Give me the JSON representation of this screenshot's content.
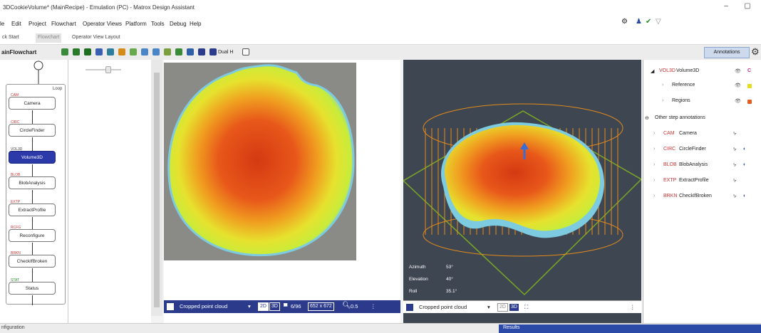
{
  "titlebar": {
    "title": "3DCookieVolume* (MainRecipe) - Emulation (PC) - Matrox Design Assistant",
    "minimize": "–",
    "restore": "▢"
  },
  "menu": [
    "le",
    "Edit",
    "Project",
    "Flowchart",
    "Operator Views",
    "Platform",
    "Tools",
    "Debug",
    "Help"
  ],
  "tabs": [
    "ck Start",
    "Flowchart",
    "Operator View Layout"
  ],
  "toolbar": {
    "flowchart_name": "ainFlowchart",
    "dual_label": "Dual H",
    "annotations_label": "Annotations"
  },
  "flowchart": {
    "loop_label": "Loop",
    "nodes": [
      {
        "tag": "CAM",
        "label": "Camera"
      },
      {
        "tag": "CIRC",
        "label": "CircleFinder"
      },
      {
        "tag": "VOL3D",
        "label": "Volume3D"
      },
      {
        "tag": "BLOB",
        "label": "BlobAnalysis"
      },
      {
        "tag": "EXTP",
        "label": "ExtractProfile"
      },
      {
        "tag": "RCFG",
        "label": "Reconfigure"
      },
      {
        "tag": "BRKN",
        "label": "CheckIfBroken"
      },
      {
        "tag": "STAT",
        "label": "Status"
      }
    ]
  },
  "view2d": {
    "dropdown_label": "Cropped point cloud",
    "mode_2d": "2D",
    "mode_3d": "3D",
    "count": "6/96",
    "resolution": "652 x 672",
    "zoom": "0.5"
  },
  "view3d": {
    "dropdown_label": "Cropped point cloud",
    "mode_2d": "2D",
    "mode_3d": "3D",
    "azimuth_label": "Azimuth",
    "azimuth_value": "53°",
    "elevation_label": "Elevation",
    "elevation_value": "40°",
    "roll_label": "Roll",
    "roll_value": "35.1°"
  },
  "annotations": {
    "root_tag": "VOL3D",
    "root_label": "Volume3D",
    "children": [
      "Reference",
      "Regions"
    ],
    "other_heading": "Other step annotations",
    "steps": [
      {
        "tag": "CAM",
        "label": "Camera"
      },
      {
        "tag": "CIRC",
        "label": "CircleFinder"
      },
      {
        "tag": "BLOB",
        "label": "BlobAnalysis"
      },
      {
        "tag": "EXTP",
        "label": "ExtractProfile"
      },
      {
        "tag": "BRKN",
        "label": "CheckIfBroken"
      }
    ]
  },
  "bottom": {
    "config_label": "nfiguration",
    "results_label": "Results"
  },
  "colors": {
    "accent": "#2b3a8a",
    "selected_node": "#2b3aa8",
    "results_bar": "#2b4aa8",
    "view3d_bg": "#3e4652"
  }
}
